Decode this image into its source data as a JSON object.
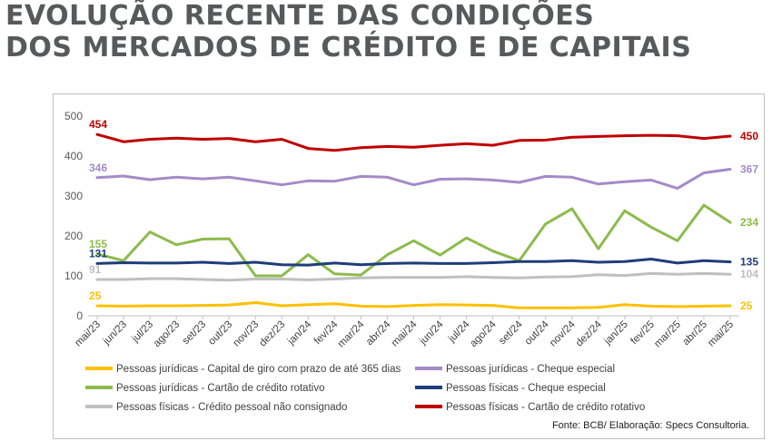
{
  "page_title": {
    "line1": "EVOLUÇÃO RECENTE DAS CONDIÇÕES",
    "line2": "DOS MERCADOS DE CRÉDITO E DE CAPITAIS"
  },
  "source": "Fonte: BCB/ Elaboração: Specs Consultoria.",
  "chart_data": {
    "type": "line",
    "categories": [
      "mai/23",
      "jun/23",
      "jul/23",
      "ago/23",
      "set/23",
      "out/23",
      "nov/23",
      "dez/23",
      "jan/24",
      "fev/24",
      "mar/24",
      "abr/24",
      "mai/24",
      "jun/24",
      "jul/24",
      "ago/24",
      "set/24",
      "out/24",
      "nov/24",
      "dez/24",
      "jan/25",
      "fev/25",
      "mar/25",
      "abr/25",
      "mai/25"
    ],
    "ylim": [
      0,
      500
    ],
    "yticks": [
      0,
      100,
      200,
      300,
      400,
      500
    ],
    "grid": false,
    "legend_position": "bottom",
    "series": [
      {
        "name": "Pessoas jurídicas - Capital de giro com prazo de até 365 dias",
        "color": "#ffc000",
        "values": [
          25,
          24,
          25,
          25,
          26,
          27,
          33,
          25,
          28,
          30,
          24,
          23,
          26,
          28,
          27,
          26,
          20,
          20,
          20,
          21,
          28,
          24,
          23,
          24,
          25
        ],
        "start_label": "25",
        "end_label": "25"
      },
      {
        "name": "Pessoas jurídicas - Cheque especial",
        "color": "#a48bc7",
        "values": [
          346,
          350,
          341,
          347,
          343,
          347,
          338,
          328,
          338,
          337,
          349,
          347,
          328,
          342,
          343,
          340,
          334,
          349,
          347,
          330,
          336,
          340,
          319,
          358,
          367
        ],
        "start_label": "346",
        "end_label": "367"
      },
      {
        "name": "Pessoas jurídicas - Cartão de crédito rotativo",
        "color": "#8cbb4c",
        "values": [
          155,
          138,
          210,
          178,
          192,
          193,
          100,
          100,
          153,
          105,
          102,
          153,
          188,
          152,
          195,
          162,
          138,
          230,
          268,
          168,
          263,
          222,
          188,
          277,
          234
        ],
        "start_label": "155",
        "end_label": "234"
      },
      {
        "name": "Pessoas físicas - Cheque especial",
        "color": "#1f3d7a",
        "values": [
          131,
          133,
          132,
          132,
          134,
          131,
          134,
          128,
          127,
          132,
          128,
          131,
          132,
          131,
          131,
          133,
          136,
          136,
          138,
          134,
          136,
          142,
          132,
          138,
          135
        ],
        "start_label": "131",
        "end_label": "135"
      },
      {
        "name": "Pessoas físicas - Crédito pessoal não consignado",
        "color": "#bfbfbf",
        "values": [
          91,
          91,
          93,
          93,
          91,
          89,
          92,
          92,
          90,
          92,
          95,
          96,
          96,
          96,
          98,
          96,
          95,
          97,
          98,
          103,
          101,
          106,
          104,
          106,
          104
        ],
        "start_label": "91",
        "end_label": "104"
      },
      {
        "name": "Pessoas físicas - Cartão de crédito rotativo",
        "color": "#c00000",
        "values": [
          454,
          436,
          442,
          445,
          442,
          444,
          436,
          442,
          419,
          414,
          421,
          424,
          422,
          427,
          431,
          427,
          439,
          440,
          447,
          449,
          451,
          452,
          451,
          444,
          450
        ],
        "start_label": "454",
        "end_label": "450"
      }
    ]
  }
}
